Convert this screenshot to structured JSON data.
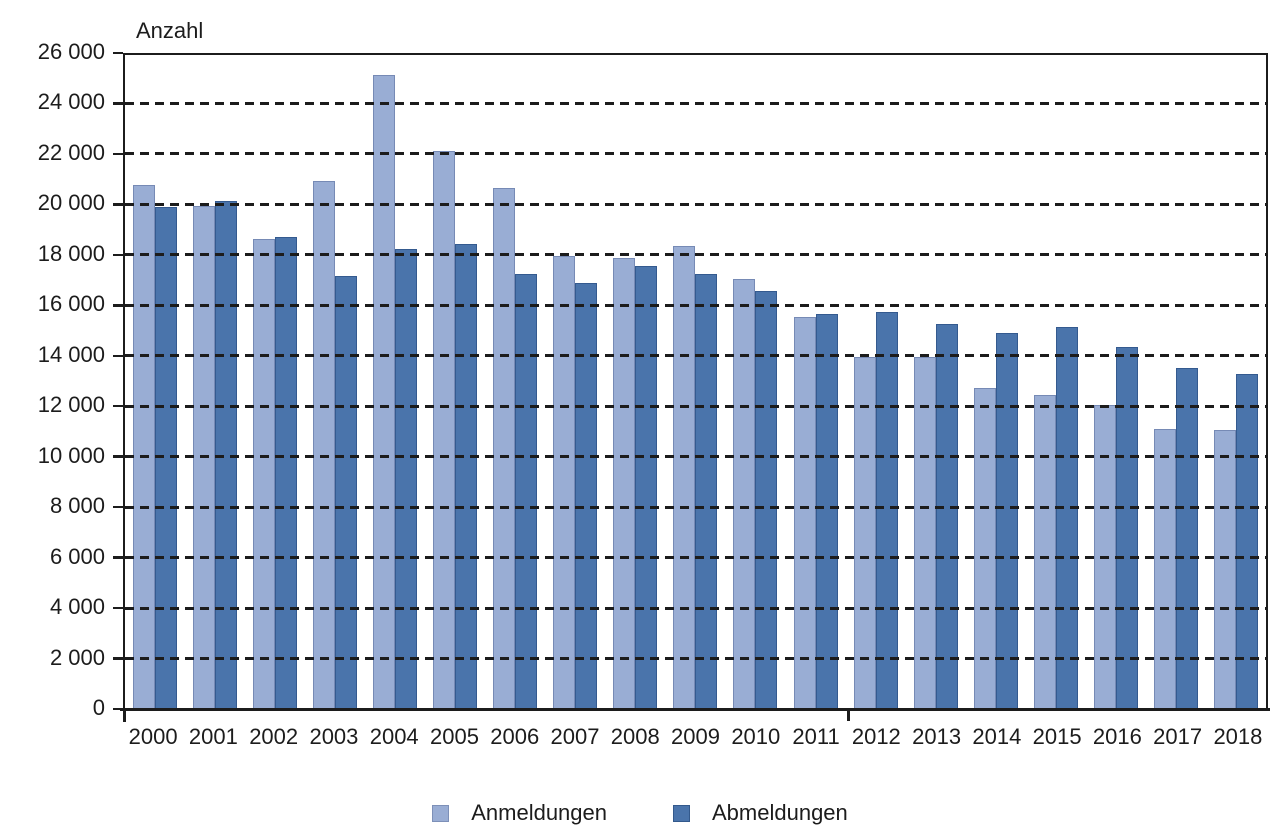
{
  "chart_data": {
    "type": "bar",
    "title": "Anzahl",
    "categories": [
      "2000",
      "2001",
      "2002",
      "2003",
      "2004",
      "2005",
      "2006",
      "2007",
      "2008",
      "2009",
      "2010",
      "2011",
      "2012",
      "2013",
      "2014",
      "2015",
      "2016",
      "2017",
      "2018"
    ],
    "series": [
      {
        "name": "Anmeldungen",
        "color": "#99ADD4",
        "values": [
          20850,
          20000,
          18700,
          21000,
          25200,
          22200,
          20700,
          18000,
          17950,
          18400,
          17100,
          15600,
          14000,
          14000,
          12750,
          12500,
          12100,
          11150,
          11100
        ]
      },
      {
        "name": "Abmeldungen",
        "color": "#4A74AB",
        "values": [
          19950,
          20200,
          18750,
          17200,
          18300,
          18500,
          17300,
          16950,
          17600,
          17300,
          16600,
          15700,
          15800,
          15300,
          14950,
          15200,
          14400,
          13550,
          13300
        ]
      }
    ],
    "xlabel": "",
    "ylabel": "Anzahl",
    "ylim": [
      0,
      26000
    ],
    "ytick_step": 2000,
    "ytick_labels": [
      "0",
      "2 000",
      "4 000",
      "6 000",
      "8 000",
      "10 000",
      "12 000",
      "14 000",
      "16 000",
      "18 000",
      "20 000",
      "22 000",
      "24 000",
      "26 000"
    ],
    "grid": "horizontal dashed",
    "legend_position": "bottom center",
    "axis_color": "#1c1c1c"
  },
  "legend": {
    "items": [
      {
        "label": "Anmeldungen"
      },
      {
        "label": "Abmeldungen"
      }
    ]
  }
}
